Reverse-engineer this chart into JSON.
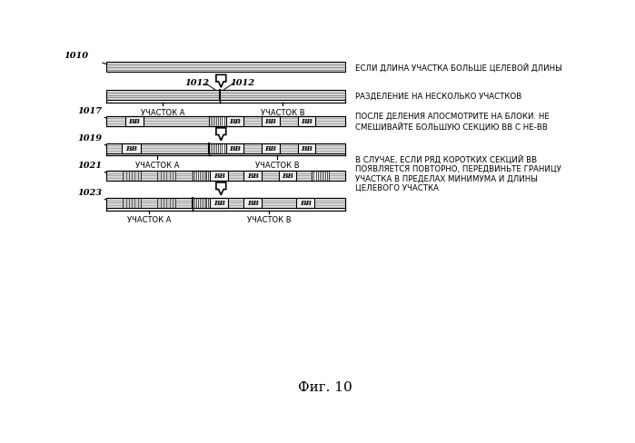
{
  "title": "Фиг. 10",
  "bg_color": "#ffffff",
  "label_1010": "1010",
  "label_1012": "1012",
  "label_1017": "1017",
  "label_1019": "1019",
  "label_1021": "1021",
  "label_1023": "1023",
  "text_right_1": "ЕСЛИ ДЛИНА УЧАСТКА БОЛЬШЕ ЦЕЛЕВОЙ ДЛИНЫ",
  "text_right_2": "РАЗДЕЛЕНИЕ НА НЕСКОЛЬКО УЧАСТКОВ",
  "text_right_3": "ПОСЛЕ ДЕЛЕНИЯ АПОСМОТРИТЕ НА БЛОКИ. НЕ\nСМЕШИВАЙТЕ БОЛЬШУЮ СЕКЦИЮ ВВ С НЕ-ВВ",
  "text_right_4": "В СЛУЧАЕ, ЕСЛИ РЯД КОРОТКИХ СЕКЦИЙ ВВ\nПОЯВЛЯЕТСЯ ПОВТОРНО, ПЕРЕДВИНЬТЕ ГРАНИЦУ\nУЧАСТКА В ПРЕДЕЛАХ МИНИМУМА И ДЛИНЫ\nЦЕЛЕВОГО УЧАСТКА",
  "label_uchastok_a": "УЧАСТОК А",
  "label_uchastok_b": "УЧАСТОК В"
}
